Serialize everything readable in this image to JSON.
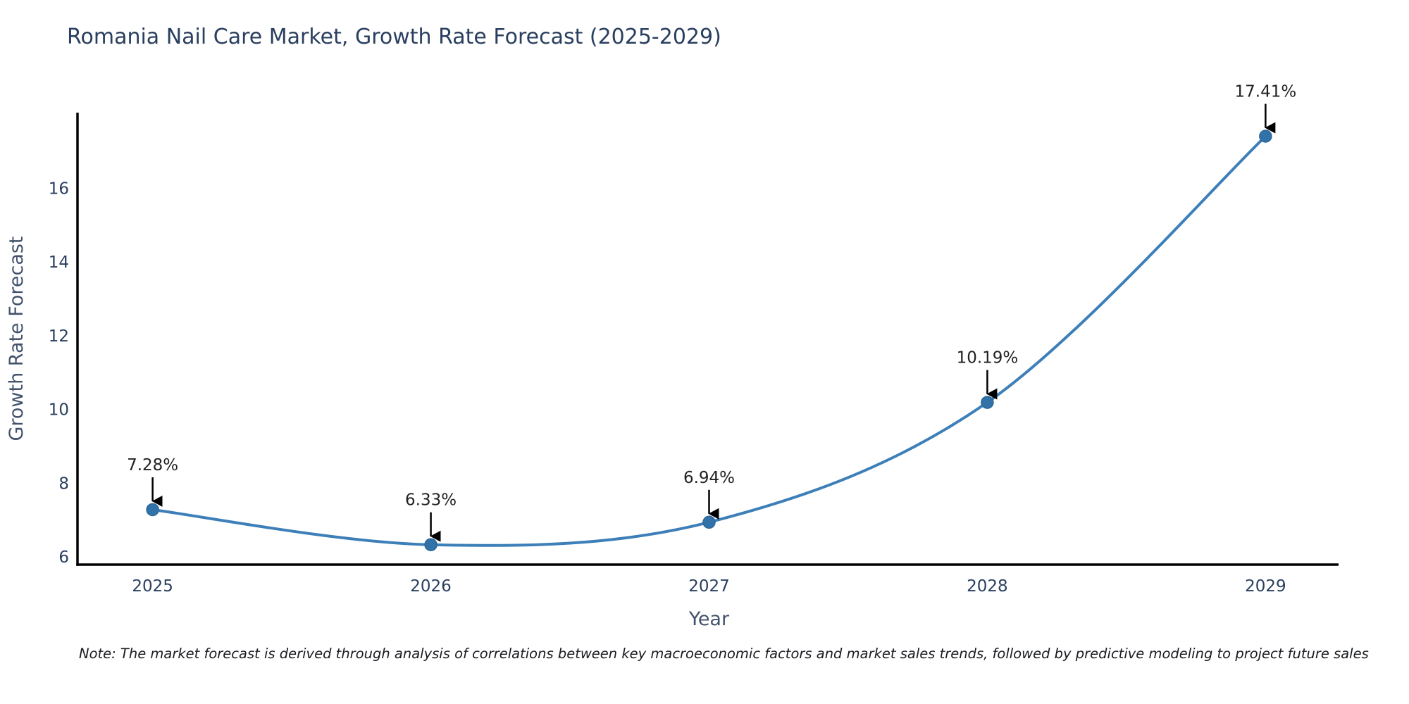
{
  "header": {
    "title": "Romania Nail Care Market, Growth Rate Forecast (2025-2029)"
  },
  "footnote": {
    "text": "Note: The market forecast is derived through analysis of correlations between key macroeconomic factors and market sales trends, followed by predictive modeling to project future sales"
  },
  "chart_data": {
    "type": "line",
    "title": "Romania Nail Care Market, Growth Rate Forecast (2025-2029)",
    "xlabel": "Year",
    "ylabel": "Growth Rate Forecast",
    "x": [
      2025,
      2026,
      2027,
      2028,
      2029
    ],
    "y": [
      7.28,
      6.33,
      6.94,
      10.19,
      17.41
    ],
    "point_labels": [
      "7.28%",
      "6.33%",
      "6.94%",
      "10.19%",
      "17.41%"
    ],
    "xticks": [
      "2025",
      "2026",
      "2027",
      "2028",
      "2029"
    ],
    "yticks": [
      "6",
      "8",
      "10",
      "12",
      "14",
      "16"
    ],
    "xlim": [
      2024.73,
      2029.27
    ],
    "ylim": [
      5.79,
      18.05
    ],
    "line_shape": "spline",
    "grid": false,
    "legend": "none",
    "colors": {
      "line": "#3d7fb8",
      "marker_fill": "#3173a9",
      "marker_edge": "#2b6699",
      "axis_spine": "#000000",
      "tick_text": "#2a3f5f",
      "axis_title_text": "#42526b",
      "annotation_text": "#222222",
      "annotation_arrow": "#000000",
      "title_text": "#2a3f5f",
      "note_text": "#191b20"
    }
  }
}
